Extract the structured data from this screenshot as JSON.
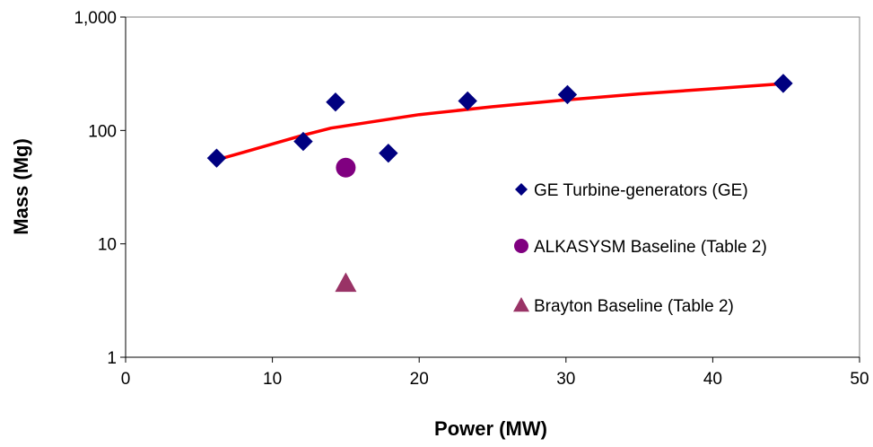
{
  "chart_data": {
    "type": "scatter",
    "title": "",
    "xlabel": "Power (MW)",
    "ylabel": "Mass (Mg)",
    "xlim": [
      0,
      50
    ],
    "ylim": [
      1,
      1000
    ],
    "y_scale": "log",
    "grid": false,
    "legend_position": "right",
    "x_ticks": [
      "0",
      "10",
      "20",
      "30",
      "40",
      "50"
    ],
    "y_ticks": [
      "1",
      "10",
      "100",
      "1,000"
    ],
    "series": [
      {
        "name": "GE Turbine-generators (GE)",
        "marker": "diamond",
        "color": "#000080",
        "x": [
          6.2,
          12.1,
          14.3,
          17.9,
          23.3,
          30.1,
          44.8
        ],
        "y": [
          57,
          80,
          178,
          63,
          182,
          207,
          260
        ]
      },
      {
        "name": "ALKASYSM Baseline (Table 2)",
        "marker": "circle",
        "color": "#800080",
        "x": [
          15
        ],
        "y": [
          47
        ]
      },
      {
        "name": "Brayton Baseline (Table 2)",
        "marker": "triangle",
        "color": "#993366",
        "x": [
          15
        ],
        "y": [
          4.5
        ]
      }
    ],
    "trendline": {
      "color": "#ff0000",
      "x": [
        6.2,
        8,
        10,
        12,
        14,
        16,
        20,
        25,
        30,
        35,
        40,
        44.8
      ],
      "y": [
        55,
        64,
        76,
        90,
        105,
        115,
        138,
        162,
        186,
        210,
        233,
        258
      ]
    }
  }
}
